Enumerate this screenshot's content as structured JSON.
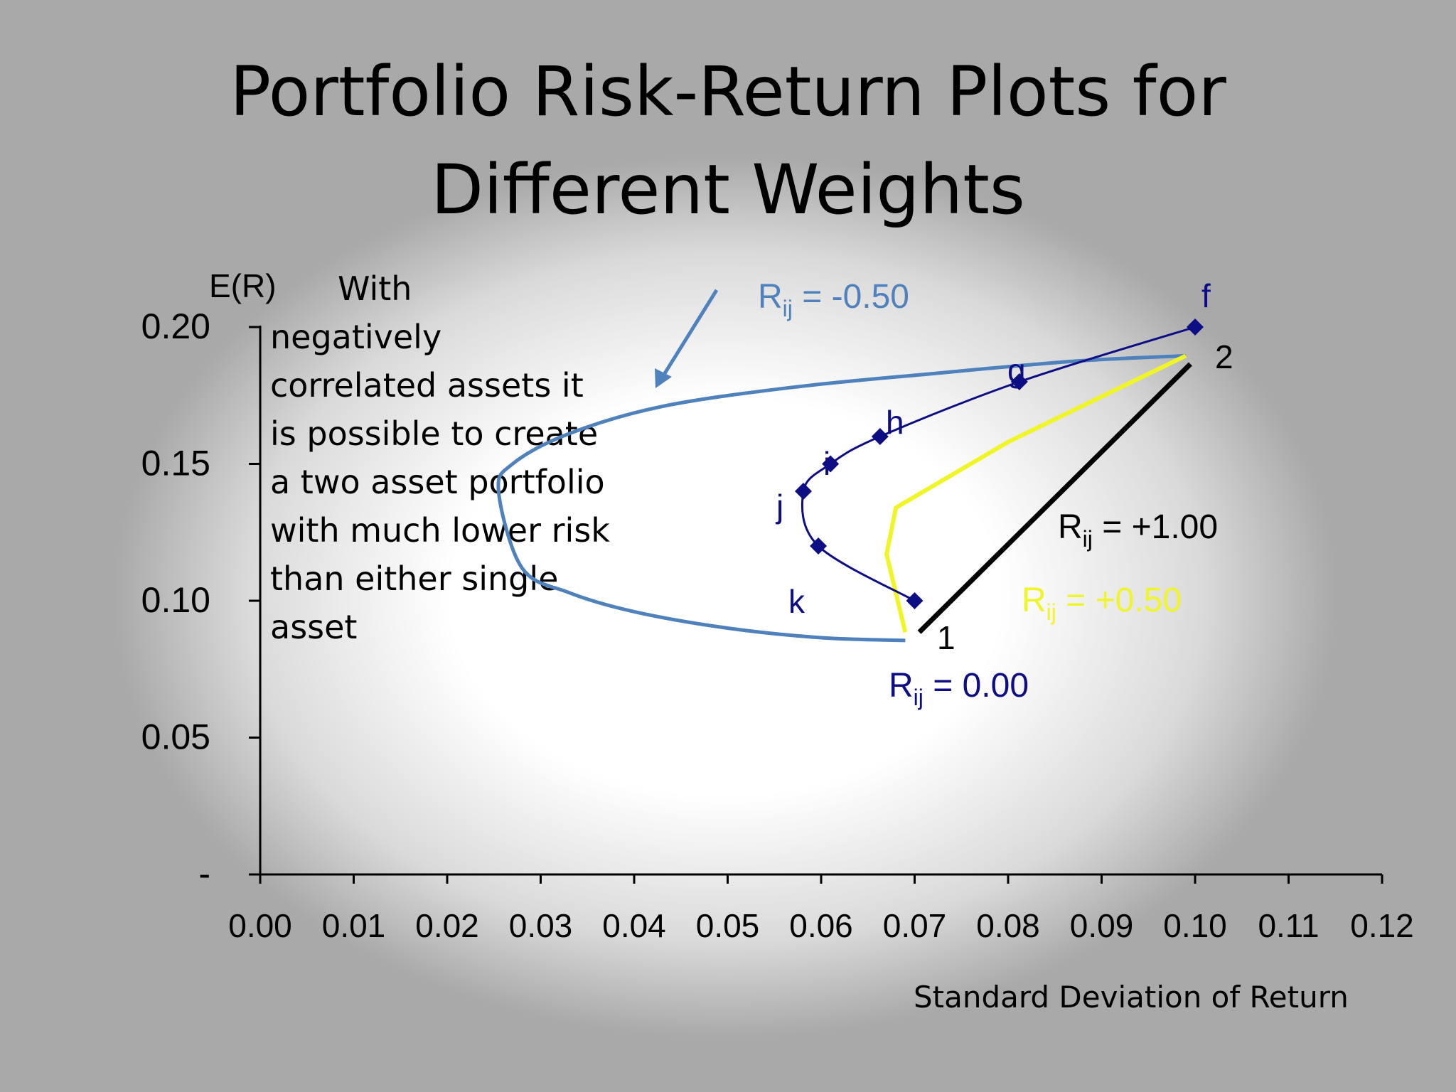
{
  "title": {
    "line1": "Portfolio Risk-Return Plots for",
    "line2": "Different Weights"
  },
  "note_text": {
    "first": "With",
    "rest": "negatively correlated assets it is possible to create a two asset portfolio with much lower risk than either single asset"
  },
  "colors": {
    "navy": "#0d0d84",
    "steel_blue": "#4f81bd",
    "yellow": "#f0f527",
    "black": "#000000"
  },
  "chart_data": {
    "type": "line",
    "ylabel": "E(R)",
    "xlabel": "Standard Deviation of Return",
    "xlim": [
      0,
      0.12
    ],
    "ylim": [
      0,
      0.2
    ],
    "x_ticks": [
      "0.00",
      "0.01",
      "0.02",
      "0.03",
      "0.04",
      "0.05",
      "0.06",
      "0.07",
      "0.08",
      "0.09",
      "0.10",
      "0.11",
      "0.12"
    ],
    "y_ticks": [
      "-",
      "0.05",
      "0.10",
      "0.15",
      "0.20"
    ],
    "x_tick_values": [
      0,
      0.01,
      0.02,
      0.03,
      0.04,
      0.05,
      0.06,
      0.07,
      0.08,
      0.09,
      0.1,
      0.11,
      0.12
    ],
    "y_tick_values": [
      0,
      0.05,
      0.1,
      0.15,
      0.2
    ],
    "series": [
      {
        "name": "Rij = 0.00",
        "sub_label": {
          "base": "R",
          "sub": "ij",
          "value": " = 0.00"
        },
        "color": "#0d0d84",
        "x": [
          0.07,
          0.0597,
          0.0581,
          0.061,
          0.0663,
          0.0812,
          0.1
        ],
        "y": [
          0.1,
          0.12,
          0.14,
          0.15,
          0.16,
          0.18,
          0.2
        ],
        "point_labels": [
          "k",
          "",
          "j",
          "i",
          "h",
          "g",
          "f"
        ]
      },
      {
        "name": "Rij = -0.50",
        "sub_label": {
          "base": "R",
          "sub": "ij",
          "value": " = -0.50"
        },
        "color": "#4f81bd",
        "x": [
          0.069,
          0.06,
          0.05,
          0.04,
          0.033,
          0.028,
          0.0255,
          0.027,
          0.033,
          0.043,
          0.057,
          0.072,
          0.087,
          0.099
        ],
        "y": [
          0.0855,
          0.0865,
          0.09,
          0.096,
          0.103,
          0.112,
          0.14,
          0.15,
          0.161,
          0.171,
          0.178,
          0.183,
          0.1875,
          0.1895
        ]
      },
      {
        "name": "Rij = +0.50",
        "sub_label": {
          "base": "R",
          "sub": "ij",
          "value": " = +0.50"
        },
        "color": "#f0f527",
        "x": [
          0.069,
          0.067,
          0.068,
          0.08,
          0.099
        ],
        "y": [
          0.0885,
          0.117,
          0.134,
          0.158,
          0.1895
        ]
      },
      {
        "name": "Rij = +1.00",
        "sub_label": {
          "base": "R",
          "sub": "ij",
          "value": " = +1.00"
        },
        "color": "#000000",
        "x": [
          0.0705,
          0.0995
        ],
        "y": [
          0.0885,
          0.1865
        ]
      }
    ],
    "asset_labels": [
      "1",
      "2"
    ]
  }
}
